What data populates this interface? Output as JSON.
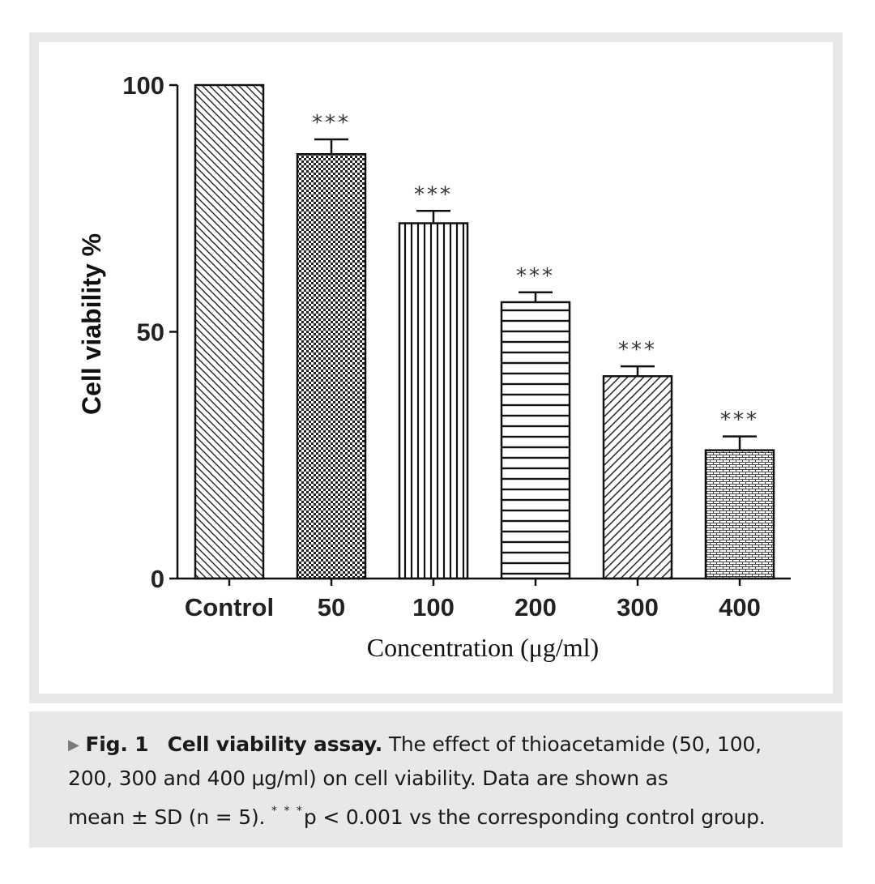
{
  "chart_data": {
    "type": "bar",
    "categories": [
      "Control",
      "50",
      "100",
      "200",
      "300",
      "400"
    ],
    "values": [
      100,
      86,
      72,
      56,
      41,
      26
    ],
    "errors": [
      0,
      3,
      2.5,
      2,
      2,
      2.8
    ],
    "annotations": [
      "",
      "***",
      "***",
      "***",
      "***",
      "***"
    ],
    "patterns": [
      "diag-back",
      "checker",
      "vertical",
      "horizontal",
      "diag-fwd",
      "brick"
    ],
    "ylabel": "Cell viability %",
    "xlabel": "Concentration (μg/ml)",
    "ylim": [
      0,
      100
    ],
    "yticks": [
      0,
      50,
      100
    ],
    "grid": false
  },
  "caption": {
    "marker": "▶",
    "fig_label": "Fig. 1",
    "title": "Cell viability assay.",
    "line1_rest": "The effect of thioacetamide (50, 100,",
    "line2": "200, 300 and 400 μg/ml) on cell viability. Data are shown as",
    "line3_start": "mean ± SD (n = 5).",
    "sig_mark": "* * *",
    "line3_end": "p < 0.001 vs the corresponding control group."
  }
}
